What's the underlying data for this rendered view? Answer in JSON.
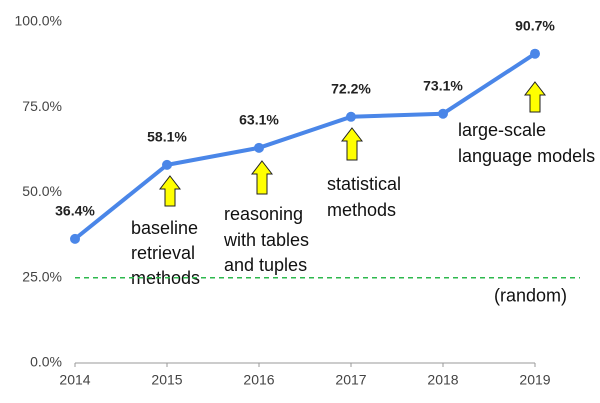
{
  "chart_data": {
    "type": "line",
    "x": [
      2014,
      2015,
      2016,
      2017,
      2018,
      2019
    ],
    "values": [
      36.4,
      58.1,
      63.1,
      72.2,
      73.1,
      90.7
    ],
    "value_labels": [
      "36.4%",
      "58.1%",
      "63.1%",
      "72.2%",
      "73.1%",
      "90.7%"
    ],
    "color": "#4a86e8",
    "xlim": [
      2014,
      2019
    ],
    "xticks": [
      2014,
      2015,
      2016,
      2017,
      2018,
      2019
    ],
    "ylim": [
      0,
      100
    ],
    "yticks": [
      {
        "value": 0,
        "label": "0.0%"
      },
      {
        "value": 25,
        "label": "25.0%"
      },
      {
        "value": 50,
        "label": "50.0%"
      },
      {
        "value": 75,
        "label": "75.0%"
      },
      {
        "value": 100,
        "label": "100.0%"
      }
    ],
    "grid": false,
    "reference_line": {
      "value": 25,
      "label": "(random)",
      "color": "#2db84d"
    },
    "annotations": [
      {
        "lines": [
          "baseline",
          "retrieval",
          "methods"
        ]
      },
      {
        "lines": [
          "reasoning",
          "with tables",
          "and tuples"
        ]
      },
      {
        "lines": [
          "statistical",
          "methods"
        ]
      },
      {
        "lines": [
          "large-scale",
          "language models"
        ]
      }
    ]
  }
}
